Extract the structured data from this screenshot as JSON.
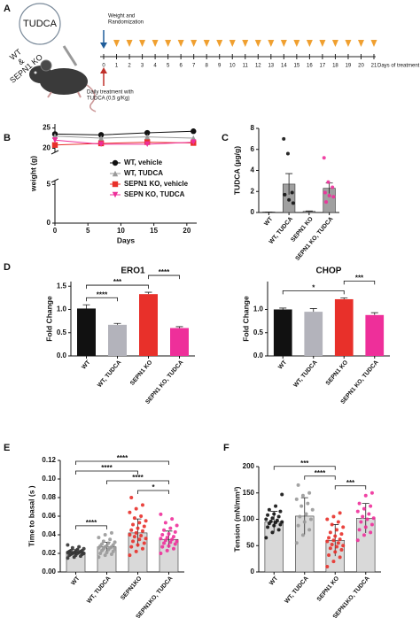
{
  "panel_letters": [
    "A",
    "B",
    "C",
    "D",
    "E",
    "F"
  ],
  "panel_a": {
    "circle_label": "TUDCA",
    "groups": [
      "WT",
      "&",
      "SEPN1 KO"
    ],
    "randomization": [
      "Weight and",
      "Randomization"
    ],
    "treatment": [
      "Daily treatment with",
      "TUDCA (0,5 g/Kg)"
    ],
    "days": [
      0,
      1,
      2,
      3,
      4,
      5,
      6,
      7,
      8,
      9,
      10,
      11,
      12,
      13,
      14,
      15,
      16,
      17,
      18,
      19,
      20,
      21
    ],
    "days_label": "Days of treatment"
  },
  "chart_data": [
    {
      "type": "line",
      "xlabel": "Days",
      "ylabel": "weight (g)",
      "x": [
        0,
        7,
        14,
        21
      ],
      "xlim": [
        0,
        21.5
      ],
      "xticks": [
        0,
        5,
        10,
        15,
        20
      ],
      "ylim": [
        0,
        26
      ],
      "ybreak": [
        5.5,
        19
      ],
      "yticks": [
        0,
        5,
        20,
        25
      ],
      "series": [
        {
          "name": "WT, vehicle",
          "color": "#111111",
          "marker": "circle",
          "values": [
            23.5,
            23.3,
            23.8,
            24.2
          ]
        },
        {
          "name": "WT, TUDCA",
          "color": "#9a9a9a",
          "marker": "triangle",
          "values": [
            23,
            22.5,
            22.8,
            22.5
          ]
        },
        {
          "name": "SEPN1 KO, vehicle",
          "color": "#e8302a",
          "marker": "square",
          "values": [
            20.8,
            21.2,
            21.5,
            21.3
          ]
        },
        {
          "name": "SEPN KO, TUDCA",
          "color": "#ee2f9a",
          "marker": "triangle-down",
          "values": [
            22,
            21,
            21,
            21.5
          ]
        }
      ]
    },
    {
      "type": "bar",
      "ylabel": "TUDCA (µg/g)",
      "categories": [
        "WT",
        "WT, TUDCA",
        "SEPN1 KO",
        "SEPN1 KO, TUDCA"
      ],
      "values": [
        0.05,
        2.7,
        0.1,
        2.3
      ],
      "errors": [
        0,
        1.0,
        0.05,
        0.5
      ],
      "colors": [
        "#a0a0a0",
        "#a0a0a0",
        "#a0a0a0",
        "#a0a0a0"
      ],
      "points": [
        [],
        [
          7.0,
          5.6,
          1.9,
          1.7,
          1.2,
          0.9
        ],
        [],
        [
          5.2,
          2.9,
          2.4,
          1.9,
          1.6,
          1.5,
          1.0
        ]
      ],
      "point_colors": [
        "#111111",
        "#111111",
        "#e8302a",
        "#ee2f9a"
      ],
      "ylim": [
        0,
        8
      ],
      "yticks": [
        0,
        2,
        4,
        6,
        8
      ],
      "annotations": []
    },
    {
      "type": "bar",
      "title": "ERO1",
      "ylabel": "Fold Change",
      "categories": [
        "WT",
        "WT, TUDCA",
        "SEPN1 KO",
        "SEPN1 KO, TUDCA"
      ],
      "values": [
        1.02,
        0.67,
        1.33,
        0.6
      ],
      "errors": [
        0.08,
        0.03,
        0.04,
        0.03
      ],
      "colors": [
        "#111111",
        "#b3b3bb",
        "#e8302a",
        "#ee2f9a"
      ],
      "ylim": [
        0,
        1.6
      ],
      "yticks": [
        {
          "value": 0,
          "label": "0.0"
        },
        {
          "value": 0.5,
          "label": "0.5"
        },
        {
          "value": 1,
          "label": "1.0"
        },
        {
          "value": 1.5,
          "label": "1.5"
        }
      ],
      "annotations": [
        {
          "text": "****",
          "from": "WT",
          "to": "WT, TUDCA"
        },
        {
          "text": "***",
          "from": "WT",
          "to": "SEPN1 KO"
        },
        {
          "text": "****",
          "from": "SEPN1 KO",
          "to": "SEPN1 KO, TUDCA"
        }
      ]
    },
    {
      "type": "bar",
      "title": "CHOP",
      "ylabel": "Fold Change",
      "categories": [
        "WT",
        "WT, TUDCA",
        "SEPN1 KO",
        "SEPN1 KO, TUDCA"
      ],
      "values": [
        1.0,
        0.95,
        1.22,
        0.88
      ],
      "errors": [
        0.03,
        0.07,
        0.03,
        0.05
      ],
      "colors": [
        "#111111",
        "#b3b3bb",
        "#e8302a",
        "#ee2f9a"
      ],
      "ylim": [
        0,
        1.6
      ],
      "yticks": [
        {
          "value": 0,
          "label": "0.0"
        },
        {
          "value": 0.5,
          "label": "0.5"
        },
        {
          "value": 1,
          "label": "1.0"
        }
      ],
      "annotations": [
        {
          "text": "*",
          "from": "WT",
          "to": "SEPN1 KO"
        },
        {
          "text": "***",
          "from": "SEPN1 KO",
          "to": "SEPN1 KO, TUDCA"
        }
      ]
    },
    {
      "type": "bar",
      "ylabel": "Time to basal (s )",
      "categories": [
        "WT",
        "WT, TUDCA",
        "SEPN1KO",
        "SEPN1KO, TUDCA"
      ],
      "values": [
        0.021,
        0.027,
        0.042,
        0.035
      ],
      "errors": [
        0.003,
        0.005,
        0.015,
        0.009
      ],
      "colors": [
        "#d9d9d9",
        "#d9d9d9",
        "#d9d9d9",
        "#d9d9d9"
      ],
      "points": [
        [
          0.015,
          0.016,
          0.017,
          0.018,
          0.018,
          0.019,
          0.019,
          0.02,
          0.02,
          0.02,
          0.021,
          0.021,
          0.021,
          0.022,
          0.022,
          0.022,
          0.023,
          0.023,
          0.024,
          0.025,
          0.026,
          0.027,
          0.029
        ],
        [
          0.016,
          0.018,
          0.019,
          0.02,
          0.021,
          0.022,
          0.023,
          0.024,
          0.025,
          0.025,
          0.026,
          0.026,
          0.027,
          0.027,
          0.028,
          0.028,
          0.029,
          0.03,
          0.031,
          0.032,
          0.033,
          0.035,
          0.037,
          0.04,
          0.042
        ],
        [
          0.018,
          0.022,
          0.025,
          0.027,
          0.029,
          0.031,
          0.033,
          0.035,
          0.036,
          0.038,
          0.039,
          0.04,
          0.042,
          0.044,
          0.045,
          0.047,
          0.049,
          0.051,
          0.053,
          0.055,
          0.058,
          0.06,
          0.064,
          0.068,
          0.072,
          0.08
        ],
        [
          0.02,
          0.023,
          0.025,
          0.027,
          0.028,
          0.03,
          0.031,
          0.032,
          0.033,
          0.034,
          0.035,
          0.036,
          0.037,
          0.038,
          0.04,
          0.041,
          0.043,
          0.045,
          0.047,
          0.05,
          0.053,
          0.057,
          0.062
        ]
      ],
      "point_colors": [
        "#333333",
        "#999999",
        "#e8302a",
        "#ee2f9a"
      ],
      "ylim": [
        0,
        0.12
      ],
      "yticks": [
        {
          "value": 0,
          "label": "0.00"
        },
        {
          "value": 0.02,
          "label": "0.02"
        },
        {
          "value": 0.04,
          "label": "0.04"
        },
        {
          "value": 0.06,
          "label": "0.06"
        },
        {
          "value": 0.08,
          "label": "0.08"
        },
        {
          "value": 0.1,
          "label": "0.10"
        },
        {
          "value": 0.12,
          "label": "0.12"
        }
      ],
      "annotations": [
        {
          "text": "****",
          "from": "WT",
          "to": "WT, TUDCA"
        },
        {
          "text": "*",
          "from": "SEPN1KO",
          "to": "SEPN1KO, TUDCA"
        },
        {
          "text": "****",
          "from": "WT, TUDCA",
          "to": "SEPN1KO, TUDCA"
        },
        {
          "text": "****",
          "from": "WT",
          "to": "SEPN1KO"
        },
        {
          "text": "****",
          "from": "WT",
          "to": "SEPN1KO, TUDCA"
        }
      ]
    },
    {
      "type": "bar",
      "ylabel": "Tension (mN/mm²)",
      "categories": [
        "WT",
        "WT, TUDCA",
        "SEPN1 KO",
        "SEPN1KO, TUDCA"
      ],
      "values": [
        95,
        106,
        60,
        102
      ],
      "errors": [
        20,
        35,
        30,
        28
      ],
      "colors": [
        "#d9d9d9",
        "#d9d9d9",
        "#d9d9d9",
        "#d9d9d9"
      ],
      "points": [
        [
          65,
          75,
          80,
          85,
          88,
          90,
          92,
          94,
          95,
          96,
          98,
          100,
          102,
          105,
          108,
          110,
          115,
          118,
          125,
          147
        ],
        [
          55,
          70,
          80,
          88,
          95,
          100,
          105,
          110,
          118,
          125,
          130,
          138,
          145,
          150,
          165
        ],
        [
          10,
          20,
          28,
          32,
          38,
          42,
          45,
          48,
          50,
          52,
          55,
          58,
          60,
          62,
          65,
          68,
          72,
          75,
          80,
          85,
          90,
          95,
          100,
          105,
          112
        ],
        [
          60,
          70,
          75,
          80,
          85,
          90,
          95,
          100,
          102,
          105,
          110,
          115,
          120,
          125,
          130,
          145,
          150
        ]
      ],
      "point_colors": [
        "#111111",
        "#999999",
        "#e8302a",
        "#ee2f9a"
      ],
      "ylim": [
        0,
        200
      ],
      "yticks": [
        0,
        50,
        100,
        150,
        200
      ],
      "annotations": [
        {
          "text": "***",
          "from": "SEPN1 KO",
          "to": "SEPN1KO, TUDCA"
        },
        {
          "text": "****",
          "from": "WT, TUDCA",
          "to": "SEPN1 KO"
        },
        {
          "text": "***",
          "from": "WT",
          "to": "SEPN1 KO"
        }
      ]
    }
  ]
}
